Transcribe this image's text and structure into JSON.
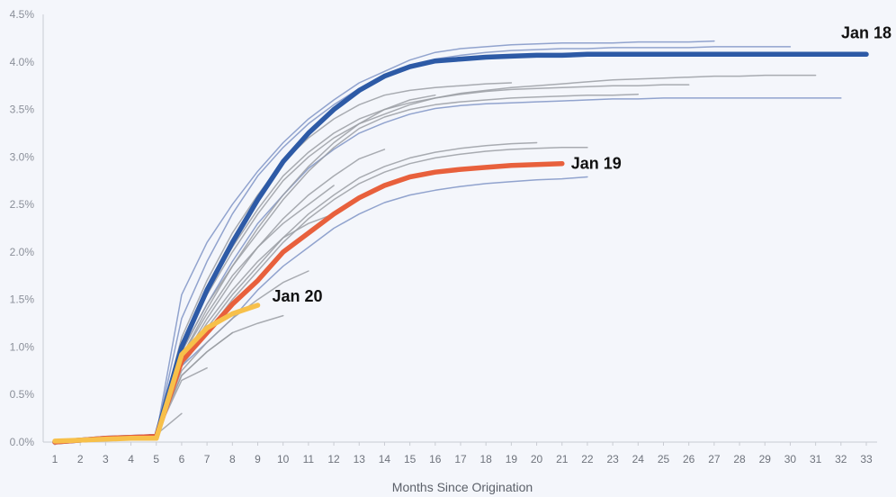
{
  "chart_data": {
    "type": "line",
    "title": "",
    "xlabel": "Months Since Origination",
    "ylabel": "",
    "ylim": [
      0,
      4.5
    ],
    "xlim": [
      1,
      33
    ],
    "grid": false,
    "x_ticks": [
      "1",
      "2",
      "3",
      "4",
      "5",
      "6",
      "7",
      "8",
      "9",
      "10",
      "11",
      "12",
      "13",
      "14",
      "15",
      "16",
      "17",
      "18",
      "19",
      "20",
      "21",
      "22",
      "23",
      "24",
      "25",
      "26",
      "27",
      "28",
      "29",
      "30",
      "31",
      "32",
      "33"
    ],
    "y_ticks": [
      "0.0%",
      "0.5%",
      "1.0%",
      "1.5%",
      "2.0%",
      "2.5%",
      "3.0%",
      "3.5%",
      "4.0%",
      "4.5%"
    ],
    "colors": {
      "highlight_jan18": "#2d5aa6",
      "highlight_jan19": "#e8603c",
      "highlight_jan20": "#f7c04a",
      "background_blue": "#7f94c6",
      "background_gray": "#9a9da3"
    },
    "highlighted_series": [
      {
        "name": "Jan 18",
        "color": "#2d5aa6",
        "x": [
          1,
          2,
          3,
          4,
          5,
          6,
          7,
          8,
          9,
          10,
          11,
          12,
          13,
          14,
          15,
          16,
          17,
          18,
          19,
          20,
          21,
          22,
          23,
          24,
          25,
          26,
          27,
          28,
          29,
          30,
          31,
          32,
          33
        ],
        "y": [
          0.0,
          0.02,
          0.04,
          0.05,
          0.06,
          1.0,
          1.6,
          2.1,
          2.55,
          2.95,
          3.25,
          3.5,
          3.7,
          3.85,
          3.95,
          4.01,
          4.03,
          4.05,
          4.06,
          4.07,
          4.07,
          4.08,
          4.08,
          4.08,
          4.08,
          4.08,
          4.08,
          4.08,
          4.08,
          4.08,
          4.08,
          4.08,
          4.08
        ]
      },
      {
        "name": "Jan 19",
        "color": "#e8603c",
        "x": [
          1,
          2,
          3,
          4,
          5,
          6,
          7,
          8,
          9,
          10,
          11,
          12,
          13,
          14,
          15,
          16,
          17,
          18,
          19,
          20,
          21
        ],
        "y": [
          0.0,
          0.02,
          0.04,
          0.05,
          0.06,
          0.85,
          1.15,
          1.45,
          1.7,
          2.0,
          2.2,
          2.4,
          2.57,
          2.7,
          2.79,
          2.84,
          2.87,
          2.89,
          2.91,
          2.92,
          2.93
        ]
      },
      {
        "name": "Jan 20",
        "color": "#f7c04a",
        "x": [
          1,
          2,
          3,
          4,
          5,
          6,
          7,
          8,
          9
        ],
        "y": [
          0.01,
          0.02,
          0.03,
          0.04,
          0.04,
          0.92,
          1.2,
          1.35,
          1.44
        ]
      }
    ],
    "background_series": [
      {
        "color": "#7f94c6",
        "x": [
          1,
          2,
          3,
          4,
          5,
          6,
          7,
          8,
          9,
          10,
          11,
          12,
          13,
          14,
          15,
          16,
          17,
          18,
          19,
          20,
          21,
          22,
          23,
          24,
          25,
          26,
          27
        ],
        "y": [
          0.0,
          0.02,
          0.04,
          0.06,
          0.08,
          1.55,
          2.1,
          2.5,
          2.85,
          3.15,
          3.4,
          3.6,
          3.78,
          3.9,
          4.02,
          4.1,
          4.14,
          4.16,
          4.18,
          4.19,
          4.2,
          4.2,
          4.2,
          4.21,
          4.21,
          4.21,
          4.22
        ]
      },
      {
        "color": "#7f94c6",
        "x": [
          1,
          2,
          3,
          4,
          5,
          6,
          7,
          8,
          9,
          10,
          11,
          12,
          13,
          14,
          15,
          16,
          17,
          18,
          19,
          20,
          21,
          22,
          23,
          24,
          25,
          26,
          27,
          28,
          29,
          30
        ],
        "y": [
          0.0,
          0.02,
          0.04,
          0.06,
          0.08,
          1.3,
          1.9,
          2.4,
          2.8,
          3.1,
          3.35,
          3.55,
          3.72,
          3.85,
          3.95,
          4.03,
          4.07,
          4.1,
          4.12,
          4.13,
          4.14,
          4.14,
          4.15,
          4.15,
          4.15,
          4.15,
          4.16,
          4.16,
          4.16,
          4.16
        ]
      },
      {
        "color": "#9a9da3",
        "x": [
          1,
          2,
          3,
          4,
          5,
          6,
          7,
          8,
          9,
          10,
          11,
          12,
          13,
          14,
          15,
          16,
          17,
          18,
          19,
          20,
          21,
          22,
          23,
          24,
          25,
          26,
          27,
          28,
          29,
          30,
          31
        ],
        "y": [
          0.0,
          0.02,
          0.04,
          0.06,
          0.08,
          1.0,
          1.55,
          2.0,
          2.4,
          2.75,
          3.0,
          3.2,
          3.35,
          3.45,
          3.55,
          3.62,
          3.67,
          3.7,
          3.73,
          3.75,
          3.77,
          3.79,
          3.81,
          3.82,
          3.83,
          3.84,
          3.85,
          3.85,
          3.86,
          3.86,
          3.86
        ]
      },
      {
        "color": "#7f94c6",
        "x": [
          1,
          2,
          3,
          4,
          5,
          6,
          7,
          8,
          9,
          10,
          11,
          12,
          13,
          14,
          15,
          16,
          17,
          18,
          19,
          20,
          21,
          22,
          23,
          24,
          25,
          26,
          27,
          28,
          29,
          30,
          31,
          32
        ],
        "y": [
          0.0,
          0.02,
          0.04,
          0.06,
          0.08,
          0.95,
          1.45,
          1.9,
          2.3,
          2.6,
          2.88,
          3.08,
          3.25,
          3.36,
          3.45,
          3.51,
          3.54,
          3.56,
          3.57,
          3.58,
          3.59,
          3.6,
          3.61,
          3.61,
          3.62,
          3.62,
          3.62,
          3.62,
          3.62,
          3.62,
          3.62,
          3.62
        ]
      },
      {
        "color": "#9a9da3",
        "x": [
          1,
          2,
          3,
          4,
          5,
          6,
          7,
          8,
          9,
          10,
          11,
          12,
          13,
          14,
          15,
          16,
          17,
          18,
          19,
          20,
          21,
          22,
          23,
          24,
          25,
          26
        ],
        "y": [
          0.0,
          0.02,
          0.04,
          0.06,
          0.08,
          1.05,
          1.6,
          2.05,
          2.45,
          2.8,
          3.05,
          3.25,
          3.4,
          3.5,
          3.57,
          3.62,
          3.66,
          3.69,
          3.71,
          3.72,
          3.73,
          3.74,
          3.75,
          3.75,
          3.76,
          3.76
        ]
      },
      {
        "color": "#9a9da3",
        "x": [
          1,
          2,
          3,
          4,
          5,
          6,
          7,
          8,
          9,
          10,
          11,
          12,
          13,
          14,
          15,
          16,
          17,
          18,
          19,
          20,
          21,
          22,
          23,
          24
        ],
        "y": [
          0.0,
          0.02,
          0.04,
          0.06,
          0.08,
          0.95,
          1.45,
          1.85,
          2.2,
          2.55,
          2.85,
          3.1,
          3.3,
          3.42,
          3.5,
          3.55,
          3.58,
          3.6,
          3.62,
          3.63,
          3.64,
          3.65,
          3.65,
          3.66
        ]
      },
      {
        "color": "#9a9da3",
        "x": [
          1,
          2,
          3,
          4,
          5,
          6,
          7,
          8,
          9,
          10,
          11,
          12,
          13,
          14,
          15,
          16,
          17,
          18,
          19
        ],
        "y": [
          0.0,
          0.02,
          0.04,
          0.06,
          0.08,
          1.1,
          1.7,
          2.2,
          2.6,
          2.95,
          3.2,
          3.4,
          3.55,
          3.65,
          3.7,
          3.73,
          3.75,
          3.77,
          3.78
        ]
      },
      {
        "color": "#9a9da3",
        "x": [
          1,
          2,
          3,
          4,
          5,
          6,
          7,
          8,
          9,
          10,
          11,
          12,
          13,
          14,
          15,
          16
        ],
        "y": [
          0.0,
          0.02,
          0.04,
          0.06,
          0.08,
          0.9,
          1.4,
          1.85,
          2.25,
          2.6,
          2.9,
          3.15,
          3.35,
          3.5,
          3.6,
          3.65
        ]
      },
      {
        "color": "#9a9da3",
        "x": [
          1,
          2,
          3,
          4,
          5,
          6,
          7,
          8,
          9,
          10,
          11,
          12,
          13,
          14
        ],
        "y": [
          0.0,
          0.02,
          0.04,
          0.06,
          0.08,
          0.85,
          1.3,
          1.7,
          2.05,
          2.35,
          2.6,
          2.8,
          2.98,
          3.08
        ]
      },
      {
        "color": "#9a9da3",
        "x": [
          1,
          2,
          3,
          4,
          5,
          6,
          7,
          8,
          9,
          10,
          11,
          12,
          13,
          14,
          15,
          16,
          17,
          18,
          19,
          20
        ],
        "y": [
          0.0,
          0.02,
          0.04,
          0.06,
          0.08,
          0.85,
          1.2,
          1.55,
          1.85,
          2.15,
          2.4,
          2.6,
          2.78,
          2.9,
          2.99,
          3.05,
          3.09,
          3.12,
          3.14,
          3.15
        ]
      },
      {
        "color": "#9a9da3",
        "x": [
          1,
          2,
          3,
          4,
          5,
          6,
          7,
          8,
          9,
          10,
          11,
          12,
          13,
          14,
          15,
          16,
          17,
          18,
          19,
          20,
          21,
          22
        ],
        "y": [
          0.0,
          0.02,
          0.04,
          0.06,
          0.08,
          0.8,
          1.15,
          1.5,
          1.8,
          2.1,
          2.35,
          2.55,
          2.72,
          2.84,
          2.93,
          2.99,
          3.03,
          3.06,
          3.08,
          3.09,
          3.1,
          3.1
        ]
      },
      {
        "color": "#7f94c6",
        "x": [
          1,
          2,
          3,
          4,
          5,
          6,
          7,
          8,
          9,
          10,
          11,
          12,
          13,
          14,
          15,
          16,
          17,
          18,
          19,
          20,
          21,
          22
        ],
        "y": [
          0.0,
          0.02,
          0.04,
          0.06,
          0.08,
          0.8,
          1.05,
          1.3,
          1.6,
          1.85,
          2.05,
          2.25,
          2.4,
          2.52,
          2.6,
          2.65,
          2.69,
          2.72,
          2.74,
          2.76,
          2.77,
          2.79
        ]
      },
      {
        "color": "#9a9da3",
        "x": [
          1,
          2,
          3,
          4,
          5,
          6,
          7,
          8,
          9,
          10,
          11,
          12
        ],
        "y": [
          0.0,
          0.02,
          0.04,
          0.06,
          0.08,
          0.9,
          1.35,
          1.75,
          2.05,
          2.3,
          2.5,
          2.7
        ]
      },
      {
        "color": "#9a9da3",
        "x": [
          1,
          2,
          3,
          4,
          5,
          6,
          7,
          8,
          9,
          10,
          11,
          12
        ],
        "y": [
          0.0,
          0.02,
          0.04,
          0.06,
          0.08,
          0.85,
          1.25,
          1.6,
          1.9,
          2.15,
          2.3,
          2.4
        ]
      },
      {
        "color": "#9a9da3",
        "x": [
          1,
          2,
          3,
          4,
          5,
          6,
          7,
          8,
          9,
          10,
          11
        ],
        "y": [
          0.0,
          0.02,
          0.04,
          0.06,
          0.08,
          0.75,
          1.05,
          1.3,
          1.5,
          1.68,
          1.8
        ]
      },
      {
        "color": "#9a9da3",
        "x": [
          1,
          2,
          3,
          4,
          5,
          6,
          7,
          8,
          9,
          10
        ],
        "y": [
          0.0,
          0.02,
          0.04,
          0.06,
          0.08,
          0.7,
          0.95,
          1.15,
          1.25,
          1.33
        ]
      },
      {
        "color": "#9a9da3",
        "x": [
          1,
          2,
          3,
          4,
          5,
          6,
          7,
          8
        ],
        "y": [
          0.0,
          0.02,
          0.04,
          0.06,
          0.08,
          0.7,
          0.95,
          1.15
        ]
      },
      {
        "color": "#9a9da3",
        "x": [
          1,
          2,
          3,
          4,
          5,
          6,
          7
        ],
        "y": [
          0.0,
          0.02,
          0.04,
          0.06,
          0.08,
          0.65,
          0.78
        ]
      },
      {
        "color": "#9a9da3",
        "x": [
          1,
          2,
          3,
          4,
          5,
          6
        ],
        "y": [
          0.0,
          0.02,
          0.04,
          0.06,
          0.08,
          0.3
        ]
      }
    ]
  }
}
